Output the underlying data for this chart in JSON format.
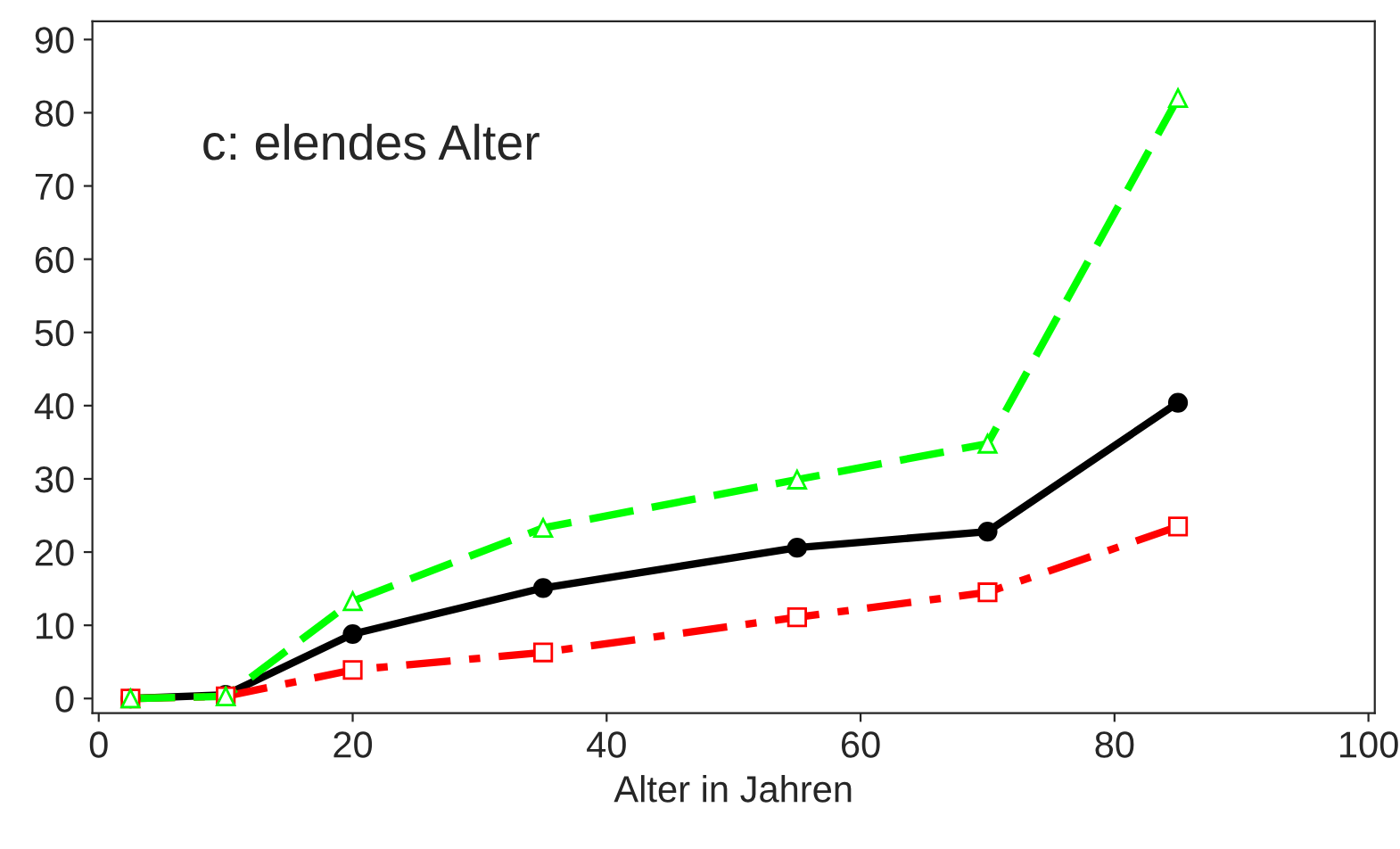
{
  "chart_data": {
    "type": "line",
    "xlabel": "Alter in Jahren",
    "x": [
      2.5,
      10,
      20,
      35,
      55,
      70,
      85
    ],
    "series": [
      {
        "color": "#000000",
        "marker": "circle",
        "line_style": "solid",
        "values": [
          0,
          0.5,
          8.8,
          15.1,
          20.6,
          22.8,
          40.4
        ]
      },
      {
        "color": "#ff0000",
        "marker": "square",
        "line_style": "dashdot",
        "values": [
          0,
          0.3,
          3.9,
          6.3,
          11.1,
          14.5,
          23.5
        ]
      },
      {
        "color": "#00ff00",
        "marker": "triangle",
        "line_style": "dashed",
        "values": [
          0,
          0.3,
          13.3,
          23.3,
          29.9,
          34.8,
          82
        ]
      }
    ],
    "annotations": [
      "c: elendes Alter"
    ],
    "xlim": [
      -0.5,
      100.5
    ],
    "ylim": [
      -2,
      92.5
    ],
    "xticks": [
      0,
      20,
      40,
      60,
      80,
      100
    ],
    "yticks": [
      0,
      10,
      20,
      30,
      40,
      50,
      60,
      70,
      80,
      90
    ],
    "grid": false,
    "legend": false
  }
}
